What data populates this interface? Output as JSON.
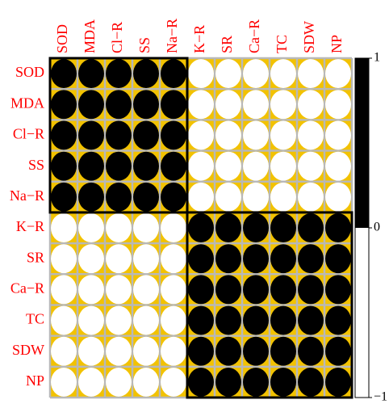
{
  "chart_data": {
    "type": "corrplot",
    "variables": [
      "SOD",
      "MDA",
      "Cl−R",
      "SS",
      "Na−R",
      "K−R",
      "SR",
      "Ca−R",
      "TC",
      "SDW",
      "NP"
    ],
    "matrix": [
      [
        1,
        1,
        1,
        1,
        1,
        -1,
        -1,
        -1,
        -1,
        -1,
        -1
      ],
      [
        1,
        1,
        1,
        1,
        1,
        -1,
        -1,
        -1,
        -1,
        -1,
        -1
      ],
      [
        1,
        1,
        1,
        1,
        1,
        -1,
        -1,
        -1,
        -1,
        -1,
        -1
      ],
      [
        1,
        1,
        1,
        1,
        1,
        -1,
        -1,
        -1,
        -1,
        -1,
        -1
      ],
      [
        1,
        1,
        1,
        1,
        1,
        -1,
        -1,
        -1,
        -1,
        -1,
        -1
      ],
      [
        -1,
        -1,
        -1,
        -1,
        -1,
        1,
        1,
        1,
        1,
        1,
        1
      ],
      [
        -1,
        -1,
        -1,
        -1,
        -1,
        1,
        1,
        1,
        1,
        1,
        1
      ],
      [
        -1,
        -1,
        -1,
        -1,
        -1,
        1,
        1,
        1,
        1,
        1,
        1
      ],
      [
        -1,
        -1,
        -1,
        -1,
        -1,
        1,
        1,
        1,
        1,
        1,
        1
      ],
      [
        -1,
        -1,
        -1,
        -1,
        -1,
        1,
        1,
        1,
        1,
        1,
        1
      ],
      [
        -1,
        -1,
        -1,
        -1,
        -1,
        1,
        1,
        1,
        1,
        1,
        1
      ]
    ],
    "positive_color": "#000000",
    "negative_color": "#ffffff",
    "cell_color": "#f2c200",
    "grid_color": "#b8b8b8",
    "clim": [
      -1,
      1
    ],
    "colorbar_ticks": [
      1,
      0,
      {
        "value": -1,
        "label": "−1"
      }
    ]
  }
}
